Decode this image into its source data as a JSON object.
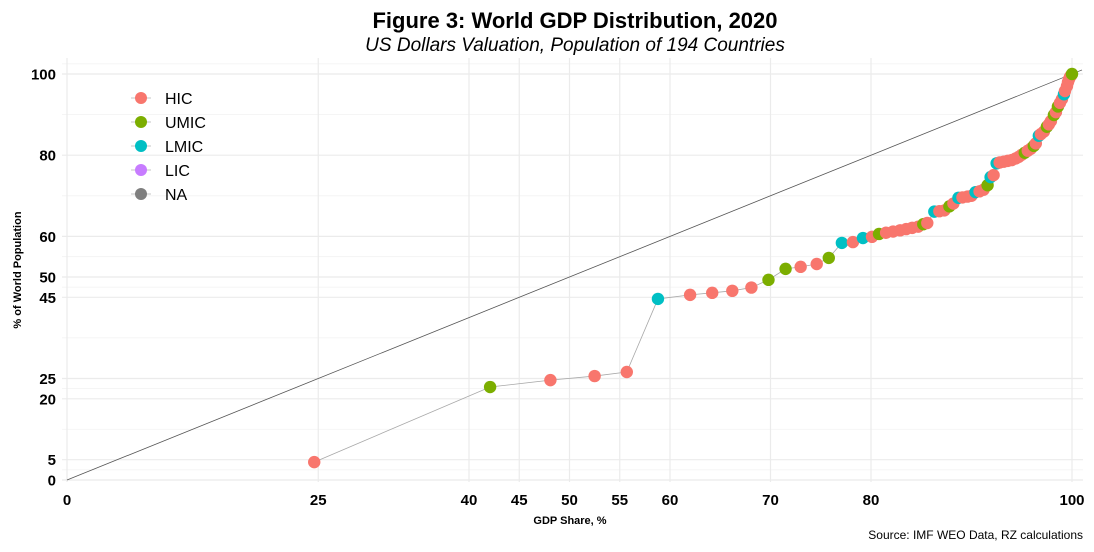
{
  "chart_data": {
    "type": "scatter",
    "title": "Figure 3: World GDP Distribution, 2020",
    "subtitle": "US Dollars Valuation, Population of 194 Countries",
    "xlabel": "GDP Share, %",
    "ylabel": "% of World Population",
    "caption": "Source: IMF WEO Data, RZ calculations",
    "xlim": [
      0,
      100
    ],
    "ylim": [
      0,
      100
    ],
    "x_ticks": [
      0,
      25,
      40,
      45,
      50,
      55,
      60,
      70,
      80,
      100
    ],
    "y_ticks": [
      0,
      5,
      20,
      25,
      45,
      50,
      60,
      80,
      100
    ],
    "y_minor": [
      2.5,
      12.5,
      22.5,
      35,
      47.5,
      55,
      70,
      90,
      102.5
    ],
    "grid": true,
    "legend_position": "top-left",
    "reference_line": {
      "label": "equality line",
      "from": [
        0,
        0
      ],
      "to": [
        100,
        100
      ]
    },
    "legend": [
      {
        "name": "HIC",
        "color": "#F8766D"
      },
      {
        "name": "UMIC",
        "color": "#7CAE00"
      },
      {
        "name": "LMIC",
        "color": "#00BFC4"
      },
      {
        "name": "LIC",
        "color": "#C77CFF"
      },
      {
        "name": "NA",
        "color": "#7F7F7F"
      }
    ],
    "points": [
      {
        "x": 24.6,
        "y": 4.4,
        "group": "HIC"
      },
      {
        "x": 42.1,
        "y": 22.9,
        "group": "UMIC"
      },
      {
        "x": 48.1,
        "y": 24.6,
        "group": "HIC"
      },
      {
        "x": 52.5,
        "y": 25.6,
        "group": "HIC"
      },
      {
        "x": 55.7,
        "y": 26.6,
        "group": "HIC"
      },
      {
        "x": 58.8,
        "y": 44.6,
        "group": "LMIC"
      },
      {
        "x": 62.0,
        "y": 45.6,
        "group": "HIC"
      },
      {
        "x": 64.2,
        "y": 46.1,
        "group": "HIC"
      },
      {
        "x": 66.2,
        "y": 46.6,
        "group": "HIC"
      },
      {
        "x": 68.1,
        "y": 47.4,
        "group": "HIC"
      },
      {
        "x": 69.8,
        "y": 49.3,
        "group": "UMIC"
      },
      {
        "x": 71.5,
        "y": 52.0,
        "group": "UMIC"
      },
      {
        "x": 73.0,
        "y": 52.5,
        "group": "HIC"
      },
      {
        "x": 74.6,
        "y": 53.2,
        "group": "HIC"
      },
      {
        "x": 75.8,
        "y": 54.7,
        "group": "UMIC"
      },
      {
        "x": 77.1,
        "y": 58.4,
        "group": "LMIC"
      },
      {
        "x": 78.2,
        "y": 58.6,
        "group": "HIC"
      },
      {
        "x": 79.2,
        "y": 59.6,
        "group": "LMIC"
      },
      {
        "x": 80.1,
        "y": 59.9,
        "group": "HIC"
      },
      {
        "x": 80.8,
        "y": 60.6,
        "group": "UMIC"
      },
      {
        "x": 81.5,
        "y": 60.9,
        "group": "HIC"
      },
      {
        "x": 82.2,
        "y": 61.2,
        "group": "HIC"
      },
      {
        "x": 82.9,
        "y": 61.5,
        "group": "HIC"
      },
      {
        "x": 83.5,
        "y": 61.8,
        "group": "HIC"
      },
      {
        "x": 84.1,
        "y": 62.1,
        "group": "HIC"
      },
      {
        "x": 84.7,
        "y": 62.4,
        "group": "HIC"
      },
      {
        "x": 85.2,
        "y": 63.0,
        "group": "UMIC"
      },
      {
        "x": 85.6,
        "y": 63.3,
        "group": "HIC"
      },
      {
        "x": 86.3,
        "y": 66.1,
        "group": "LMIC"
      },
      {
        "x": 86.8,
        "y": 66.2,
        "group": "HIC"
      },
      {
        "x": 87.3,
        "y": 66.4,
        "group": "HIC"
      },
      {
        "x": 87.8,
        "y": 67.4,
        "group": "UMIC"
      },
      {
        "x": 88.2,
        "y": 68.1,
        "group": "HIC"
      },
      {
        "x": 88.7,
        "y": 69.5,
        "group": "LMIC"
      },
      {
        "x": 89.1,
        "y": 69.6,
        "group": "HIC"
      },
      {
        "x": 89.6,
        "y": 69.8,
        "group": "HIC"
      },
      {
        "x": 90.0,
        "y": 70.0,
        "group": "HIC"
      },
      {
        "x": 90.4,
        "y": 70.9,
        "group": "LMIC"
      },
      {
        "x": 90.8,
        "y": 71.1,
        "group": "HIC"
      },
      {
        "x": 91.2,
        "y": 71.5,
        "group": "HIC"
      },
      {
        "x": 91.6,
        "y": 72.6,
        "group": "UMIC"
      },
      {
        "x": 91.9,
        "y": 74.6,
        "group": "LMIC"
      },
      {
        "x": 92.2,
        "y": 75.1,
        "group": "HIC"
      },
      {
        "x": 92.5,
        "y": 78.0,
        "group": "LMIC"
      },
      {
        "x": 92.8,
        "y": 78.2,
        "group": "HIC"
      },
      {
        "x": 93.2,
        "y": 78.4,
        "group": "HIC"
      },
      {
        "x": 93.6,
        "y": 78.6,
        "group": "HIC"
      },
      {
        "x": 94.0,
        "y": 78.8,
        "group": "HIC"
      },
      {
        "x": 94.4,
        "y": 79.2,
        "group": "HIC"
      },
      {
        "x": 94.7,
        "y": 79.6,
        "group": "HIC"
      },
      {
        "x": 95.0,
        "y": 80.1,
        "group": "HIC"
      },
      {
        "x": 95.3,
        "y": 80.6,
        "group": "UMIC"
      },
      {
        "x": 95.6,
        "y": 81.1,
        "group": "HIC"
      },
      {
        "x": 95.9,
        "y": 81.6,
        "group": "HIC"
      },
      {
        "x": 96.2,
        "y": 82.3,
        "group": "UMIC"
      },
      {
        "x": 96.4,
        "y": 82.9,
        "group": "HIC"
      },
      {
        "x": 96.7,
        "y": 84.8,
        "group": "LMIC"
      },
      {
        "x": 96.9,
        "y": 85.2,
        "group": "HIC"
      },
      {
        "x": 97.2,
        "y": 85.8,
        "group": "HIC"
      },
      {
        "x": 97.5,
        "y": 87.0,
        "group": "UMIC"
      },
      {
        "x": 97.7,
        "y": 87.6,
        "group": "HIC"
      },
      {
        "x": 97.9,
        "y": 88.4,
        "group": "HIC"
      },
      {
        "x": 98.2,
        "y": 89.9,
        "group": "UMIC"
      },
      {
        "x": 98.4,
        "y": 90.6,
        "group": "HIC"
      },
      {
        "x": 98.6,
        "y": 92.0,
        "group": "UMIC"
      },
      {
        "x": 98.8,
        "y": 92.9,
        "group": "HIC"
      },
      {
        "x": 99.0,
        "y": 93.8,
        "group": "HIC"
      },
      {
        "x": 99.2,
        "y": 95.0,
        "group": "LMIC"
      },
      {
        "x": 99.3,
        "y": 95.8,
        "group": "HIC"
      },
      {
        "x": 99.5,
        "y": 97.0,
        "group": "HIC"
      },
      {
        "x": 99.6,
        "y": 98.0,
        "group": "HIC"
      },
      {
        "x": 99.7,
        "y": 98.7,
        "group": "HIC"
      },
      {
        "x": 99.8,
        "y": 99.3,
        "group": "HIC"
      },
      {
        "x": 99.9,
        "y": 99.6,
        "group": "HIC"
      },
      {
        "x": 100.0,
        "y": 100.0,
        "group": "UMIC"
      }
    ]
  }
}
